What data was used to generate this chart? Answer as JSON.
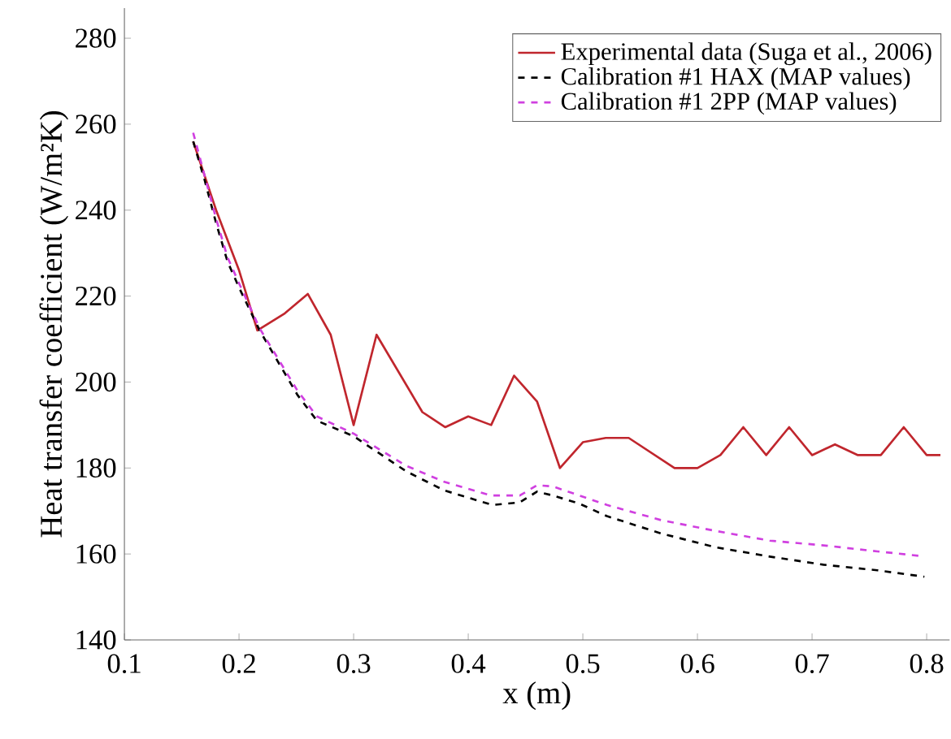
{
  "chart_data": {
    "type": "line",
    "xlabel": "x (m)",
    "ylabel": "Heat transfer coefficient (W/m²K)",
    "xlim": [
      0.1,
      0.82
    ],
    "ylim": [
      140,
      287
    ],
    "xticks": [
      0.1,
      0.2,
      0.3,
      0.4,
      0.5,
      0.6,
      0.7,
      0.8
    ],
    "yticks": [
      140,
      160,
      180,
      200,
      220,
      240,
      260,
      280
    ],
    "legend": "top right",
    "series": [
      {
        "name": "Experimental data (Suga et al., 2006)",
        "color": "#c0262d",
        "line_style": "solid",
        "x": [
          0.16,
          0.18,
          0.2,
          0.216,
          0.24,
          0.26,
          0.28,
          0.3,
          0.32,
          0.36,
          0.38,
          0.4,
          0.42,
          0.44,
          0.46,
          0.48,
          0.5,
          0.52,
          0.54,
          0.58,
          0.6,
          0.62,
          0.64,
          0.66,
          0.68,
          0.7,
          0.72,
          0.74,
          0.76,
          0.78,
          0.8,
          0.812
        ],
        "values": [
          256,
          240,
          226,
          212,
          216,
          220.5,
          211,
          190,
          211,
          193,
          189.5,
          192,
          190,
          201.5,
          195.5,
          180,
          186,
          187,
          187,
          180,
          180,
          183,
          189.5,
          183,
          189.5,
          183,
          185.5,
          183,
          183,
          189.5,
          183,
          183
        ]
      },
      {
        "name": "Calibration #1 HAX (MAP values)",
        "color": "#000000",
        "line_style": "dashed",
        "x": [
          0.16,
          0.17,
          0.18,
          0.19,
          0.2,
          0.218,
          0.251,
          0.268,
          0.3,
          0.346,
          0.379,
          0.421,
          0.445,
          0.46,
          0.474,
          0.497,
          0.521,
          0.568,
          0.615,
          0.663,
          0.71,
          0.757,
          0.798
        ],
        "values": [
          256,
          247,
          237,
          228,
          222,
          212,
          197,
          191,
          187.4,
          179.2,
          174.8,
          171.4,
          172,
          174.5,
          173.6,
          171.7,
          168.8,
          164.8,
          161.6,
          159.4,
          157.5,
          156.2,
          154.7
        ]
      },
      {
        "name": "Calibration #1 2PP (MAP values)",
        "color": "#d040e0",
        "line_style": "dashed",
        "x": [
          0.16,
          0.17,
          0.18,
          0.19,
          0.2,
          0.218,
          0.251,
          0.268,
          0.3,
          0.346,
          0.379,
          0.42,
          0.445,
          0.46,
          0.474,
          0.521,
          0.568,
          0.615,
          0.663,
          0.71,
          0.757,
          0.796
        ],
        "values": [
          258,
          248,
          238,
          229,
          223,
          212.5,
          198,
          192,
          188,
          180.5,
          176.8,
          173.6,
          173.6,
          176,
          175.7,
          171.4,
          167.9,
          165.4,
          163.1,
          162,
          160.6,
          159.5
        ]
      }
    ]
  }
}
